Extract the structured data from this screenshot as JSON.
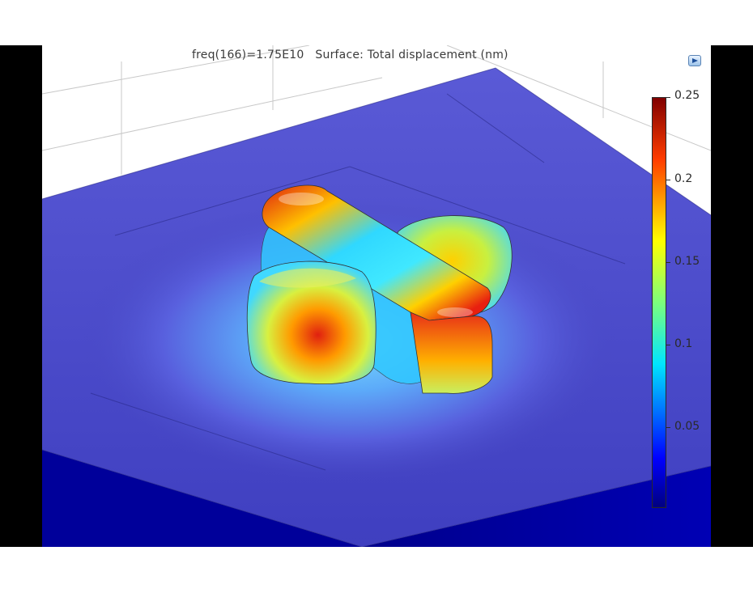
{
  "plot": {
    "title": "freq(166)=1.75E10   Surface: Total displacement (nm)"
  },
  "colorbar": {
    "ticks": [
      "0.25",
      "0.2",
      "0.15",
      "0.1",
      "0.05"
    ],
    "stops": [
      {
        "value": 0.0,
        "color": "#000080"
      },
      {
        "value": 0.12,
        "color": "#0000ff"
      },
      {
        "value": 0.35,
        "color": "#00e5ff"
      },
      {
        "value": 0.5,
        "color": "#7cff7c"
      },
      {
        "value": 0.65,
        "color": "#ffff00"
      },
      {
        "value": 0.85,
        "color": "#ff3c00"
      },
      {
        "value": 1.0,
        "color": "#800000"
      }
    ]
  },
  "colors": {
    "plane": "#4646c8",
    "substrate_side": "#00008c",
    "max": "#e01a10",
    "mid": "#20e0ff"
  },
  "icons": {
    "view": "view-options-icon"
  }
}
